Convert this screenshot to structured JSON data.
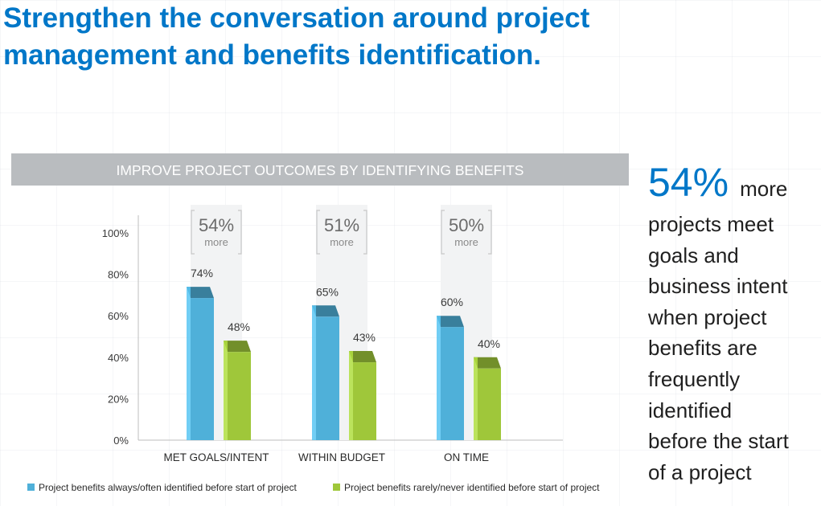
{
  "headline": {
    "line1": "Strengthen the conversation around project",
    "line2": "management and benefits identification."
  },
  "sidebar": {
    "big_value": "54%",
    "more_word": "more",
    "lines": [
      "projects meet",
      "goals and",
      "business intent",
      "when project",
      "benefits are",
      "frequently",
      "identified",
      "before the start",
      "of a project"
    ]
  },
  "colors": {
    "headline": "#0077c8",
    "banner": "#b9bcbf",
    "series_blue": "#4fb0d9",
    "series_green": "#9fc73a"
  },
  "chart_data": {
    "type": "bar",
    "title": "IMPROVE PROJECT OUTCOMES BY IDENTIFYING BENEFITS",
    "categories": [
      "MET GOALS/INTENT",
      "WITHIN BUDGET",
      "ON TIME"
    ],
    "series": [
      {
        "name": "Project benefits always/often identified before start of project",
        "values": [
          74,
          65,
          60
        ],
        "labels": [
          "74%",
          "65%",
          "60%"
        ],
        "color": "#4fb0d9"
      },
      {
        "name": "Project benefits rarely/never identified before start of project",
        "values": [
          48,
          43,
          40
        ],
        "labels": [
          "48%",
          "43%",
          "40%"
        ],
        "color": "#9fc73a"
      }
    ],
    "annotations": [
      {
        "value": "54%",
        "sub": "more"
      },
      {
        "value": "51%",
        "sub": "more"
      },
      {
        "value": "50%",
        "sub": "more"
      }
    ],
    "yticks": [
      "0%",
      "20%",
      "40%",
      "60%",
      "80%",
      "100%"
    ],
    "ylim": [
      0,
      100
    ],
    "xlabel": "",
    "ylabel": "",
    "legend": "bottom"
  }
}
